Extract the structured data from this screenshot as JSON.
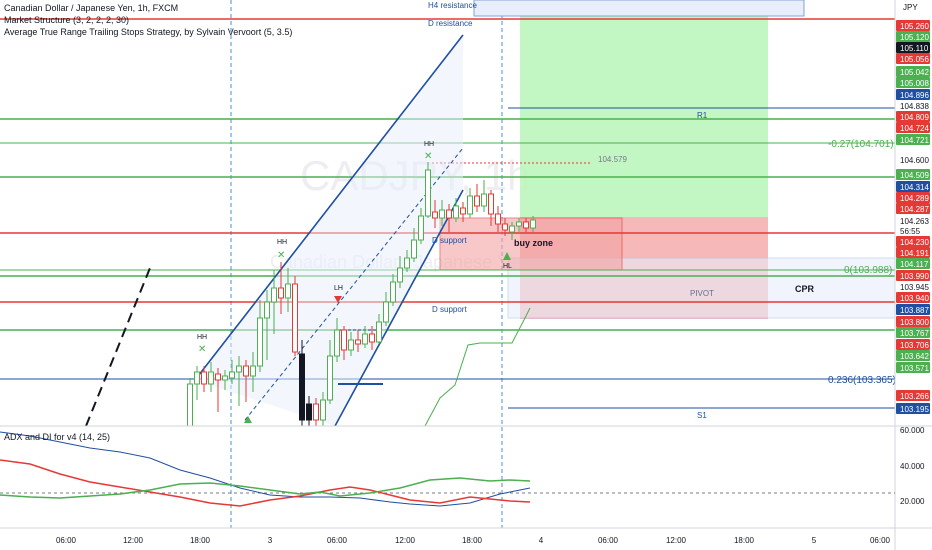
{
  "header": {
    "title": "Canadian Dollar / Japanese Yen, 1h, FXCM",
    "indicators": [
      "Market Structure (3, 2, 2, 2, 30)",
      "Average True Range Trailing Stops Strategy, by Sylvain Vervoort (5, 3.5)"
    ],
    "currency": "JPY",
    "watermark": "CADJPY, 1h",
    "watermark_sub": "Canadian Dollar / Japanese Yen"
  },
  "subpanel": {
    "title": "ADX and DI for v4 (14, 25)",
    "axis": [
      "60.000",
      "40.000",
      "20.000"
    ]
  },
  "price_axis": [
    {
      "label": "105.260",
      "bg": "#e53935",
      "fg": "#ffffff"
    },
    {
      "label": "105.120",
      "bg": "#4caf50",
      "fg": "#ffffff"
    },
    {
      "label": "105.110",
      "bg": "#131722",
      "fg": "#ffffff"
    },
    {
      "label": "105.056",
      "bg": "#e53935",
      "fg": "#ffffff"
    },
    {
      "label": "105.042",
      "bg": "#4caf50",
      "fg": "#ffffff"
    },
    {
      "label": "105.008",
      "bg": "#4caf50",
      "fg": "#ffffff"
    },
    {
      "label": "104.896",
      "bg": "#1e4fa3",
      "fg": "#ffffff"
    },
    {
      "label": "104.838",
      "bg": "#ffffff",
      "fg": "#131722"
    },
    {
      "label": "104.809",
      "bg": "#e53935",
      "fg": "#ffffff"
    },
    {
      "label": "104.724",
      "bg": "#e53935",
      "fg": "#ffffff"
    },
    {
      "label": "104.721",
      "bg": "#4caf50",
      "fg": "#ffffff"
    },
    {
      "label": "104.600",
      "bg": "#ffffff",
      "fg": "#131722"
    },
    {
      "label": "104.509",
      "bg": "#4caf50",
      "fg": "#ffffff"
    },
    {
      "label": "104.314",
      "bg": "#1e4fa3",
      "fg": "#ffffff"
    },
    {
      "label": "104.289",
      "bg": "#e53935",
      "fg": "#ffffff"
    },
    {
      "label": "104.287",
      "bg": "#e53935",
      "fg": "#ffffff"
    },
    {
      "label": "104.263",
      "bg": "#ffffff",
      "fg": "#131722"
    },
    {
      "label": "56:55",
      "bg": "#ffffff",
      "fg": "#131722"
    },
    {
      "label": "104.230",
      "bg": "#e53935",
      "fg": "#ffffff"
    },
    {
      "label": "104.191",
      "bg": "#e53935",
      "fg": "#ffffff"
    },
    {
      "label": "104.117",
      "bg": "#4caf50",
      "fg": "#ffffff"
    },
    {
      "label": "103.990",
      "bg": "#e53935",
      "fg": "#ffffff"
    },
    {
      "label": "103.945",
      "bg": "#ffffff",
      "fg": "#131722"
    },
    {
      "label": "103.940",
      "bg": "#e53935",
      "fg": "#ffffff"
    },
    {
      "label": "103.887",
      "bg": "#1e4fa3",
      "fg": "#ffffff"
    },
    {
      "label": "103.800",
      "bg": "#e53935",
      "fg": "#ffffff"
    },
    {
      "label": "103.767",
      "bg": "#4caf50",
      "fg": "#ffffff"
    },
    {
      "label": "103.706",
      "bg": "#e53935",
      "fg": "#ffffff"
    },
    {
      "label": "103.642",
      "bg": "#4caf50",
      "fg": "#ffffff"
    },
    {
      "label": "103.571",
      "bg": "#4caf50",
      "fg": "#ffffff"
    },
    {
      "label": "103.266",
      "bg": "#e53935",
      "fg": "#ffffff"
    },
    {
      "label": "103.195",
      "bg": "#1e4fa3",
      "fg": "#ffffff"
    }
  ],
  "time_axis": [
    "06:00",
    "12:00",
    "18:00",
    "3",
    "06:00",
    "12:00",
    "18:00",
    "4",
    "06:00",
    "12:00",
    "18:00",
    "5",
    "06:00"
  ],
  "annotations": {
    "h4_resistance": "H4 resistance",
    "d_resistance": "D resistance",
    "d_support_1": "D support",
    "d_support_2": "D support",
    "buy_zone": "buy zone",
    "r1": "R1",
    "s1": "S1",
    "pivot": "PIVOT",
    "cpr": "CPR",
    "fib_1": "-0.27(104.701)",
    "fib_2": "0(103.988)",
    "fib_3": "0.236(103.365)",
    "peak_value": "104.579",
    "hh_1": "HH",
    "hh_2": "HH",
    "hh_3": "HH",
    "lh": "LH",
    "hl": "HL"
  },
  "colors": {
    "bull": "#4caf50",
    "bear": "#e53935",
    "channel": "#1e4fa3",
    "profit_zone": "#9ef09e",
    "loss_zone": "#f4a3a3"
  }
}
